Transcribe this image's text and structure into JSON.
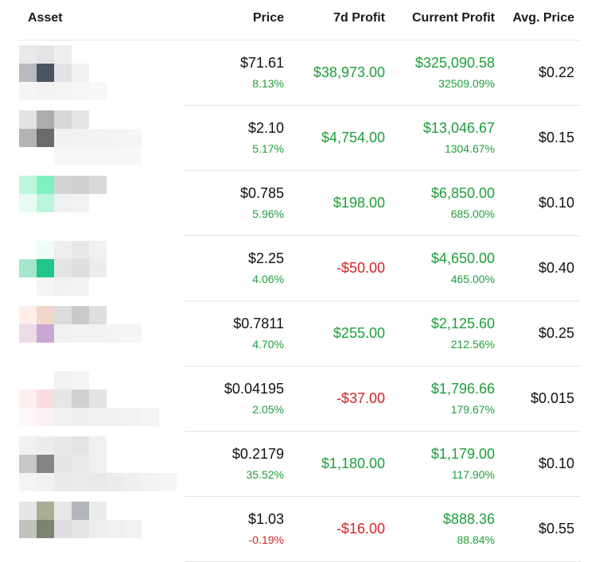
{
  "header": {
    "asset": "Asset",
    "price": "Price",
    "profit_7d": "7d Profit",
    "current_profit": "Current Profit",
    "avg_price": "Avg. Price"
  },
  "colors": {
    "positive": "#1e9e3a",
    "negative": "#d32424"
  },
  "rows": [
    {
      "price": "$71.61",
      "price_change": "8.13%",
      "price_change_sign": "pos",
      "profit_7d": "$38,973.00",
      "profit_7d_sign": "pos",
      "current_profit": "$325,090.58",
      "current_profit_pct": "32509.09%",
      "avg_price": "$0.22",
      "asset_pixels": [
        [
          "#e9e9ec",
          "#e4e4e7",
          "#eeeeee",
          ""
        ],
        [
          "#b9b9c2",
          "#4a5563",
          "#e2e2e4",
          "#f0f0f2"
        ],
        [
          "#f5f5f5",
          "#f2f2f2",
          "#f4f4f4",
          "#f6f6f6",
          "#f7f7f7"
        ]
      ]
    },
    {
      "price": "$2.10",
      "price_change": "5.17%",
      "price_change_sign": "pos",
      "profit_7d": "$4,754.00",
      "profit_7d_sign": "pos",
      "current_profit": "$13,046.67",
      "current_profit_pct": "1304.67%",
      "avg_price": "$0.15",
      "asset_pixels": [
        [
          "#e3e3e3",
          "#acacac",
          "#d8d8d8",
          "#e6e6e6"
        ],
        [
          "#b3b3b3",
          "#6b6b6b",
          "#f1f1f1",
          "#f2f2f2",
          "#f3f3f3",
          "#f4f4f4",
          "#f5f5f5"
        ],
        [
          "",
          "",
          "#f6f6f6",
          "#f6f6f6",
          "#f7f7f7",
          "#f7f7f7",
          "#f8f8f8"
        ]
      ]
    },
    {
      "price": "$0.785",
      "price_change": "5.96%",
      "price_change_sign": "pos",
      "profit_7d": "$198.00",
      "profit_7d_sign": "pos",
      "current_profit": "$6,850.00",
      "current_profit_pct": "685.00%",
      "avg_price": "$0.10",
      "asset_pixels": [
        [
          "#bff5dd",
          "#7ff0c0",
          "#d4d4d4",
          "#cfcfcf",
          "#d9d9d9"
        ],
        [
          "#e8fbf2",
          "#bdf5dc",
          "#eef0f2",
          "#f2f2f4",
          ""
        ],
        [
          "",
          "",
          "",
          "",
          ""
        ]
      ]
    },
    {
      "price": "$2.25",
      "price_change": "4.06%",
      "price_change_sign": "pos",
      "profit_7d": "-$50.00",
      "profit_7d_sign": "neg",
      "current_profit": "$4,650.00",
      "current_profit_pct": "465.00%",
      "avg_price": "$0.40",
      "asset_pixels": [
        [
          "",
          "#eefdf6",
          "#eeeeee",
          "#e8e8e8",
          "#f1f1f1"
        ],
        [
          "#a4e6cc",
          "#21c589",
          "#e4e4e4",
          "#dedede",
          "#ececec"
        ],
        [
          "",
          "#f4f4f4",
          "#f1f1f1",
          "#f3f3f3",
          ""
        ]
      ]
    },
    {
      "price": "$0.7811",
      "price_change": "4.70%",
      "price_change_sign": "pos",
      "profit_7d": "$255.00",
      "profit_7d_sign": "pos",
      "current_profit": "$2,125.60",
      "current_profit_pct": "212.56%",
      "avg_price": "$0.25",
      "asset_pixels": [
        [
          "#fdeeea",
          "#f1d6cc",
          "#dcdcdc",
          "#c9c9c9",
          "#dedede"
        ],
        [
          "#ecdcea",
          "#c9a6d3",
          "#f1f1f1",
          "#f2f2f2",
          "#f3f3f3",
          "#f4f4f4",
          "#f5f5f5"
        ],
        [
          "",
          "",
          "",
          "",
          "",
          "",
          ""
        ]
      ]
    },
    {
      "price": "$0.04195",
      "price_change": "2.05%",
      "price_change_sign": "pos",
      "profit_7d": "-$37.00",
      "profit_7d_sign": "neg",
      "current_profit": "$1,796.66",
      "current_profit_pct": "179.67%",
      "avg_price": "$0.015",
      "asset_pixels": [
        [
          "",
          "",
          "#f2f2f2",
          "#f4f4f4",
          ""
        ],
        [
          "#fdeff0",
          "#f8dde0",
          "#e6e6e6",
          "#d0d0d0",
          "#e3e3e3"
        ],
        [
          "#fef6f7",
          "#fdf0f2",
          "#f0f0f0",
          "#eeeeee",
          "#f0f0f0",
          "#f1f1f1",
          "#f2f2f2",
          "#f4f4f4"
        ]
      ]
    },
    {
      "price": "$0.2179",
      "price_change": "35.52%",
      "price_change_sign": "pos",
      "profit_7d": "$1,180.00",
      "profit_7d_sign": "pos",
      "current_profit": "$1,179.00",
      "current_profit_pct": "117.90%",
      "avg_price": "$0.10",
      "asset_pixels": [
        [
          "#f1f1f1",
          "#ececec",
          "#e7e7e7",
          "#e4e4e4",
          "#f0f0f0"
        ],
        [
          "#c8c8c8",
          "#858585",
          "#e6e6e6",
          "#e9e9e9",
          "#f0f0f0"
        ],
        [
          "#f4f4f4",
          "#f1f1f1",
          "#eaeaea",
          "#ebebeb",
          "#e9e9e9",
          "#ececec",
          "#efefef",
          "#f2f2f2",
          "#f5f5f5"
        ]
      ]
    },
    {
      "price": "$1.03",
      "price_change": "-0.19%",
      "price_change_sign": "neg",
      "profit_7d": "-$16.00",
      "profit_7d_sign": "neg",
      "current_profit": "$888.36",
      "current_profit_pct": "88.84%",
      "avg_price": "$0.55",
      "asset_pixels": [
        [
          "#e6e6e6",
          "#a9ac97",
          "#e8e8e8",
          "#b3b7bb",
          "#ececec"
        ],
        [
          "#c2c4bb",
          "#7b846e",
          "#dedede",
          "#e4e4e4",
          "#eeeeee",
          "#f0f0f0",
          "#f2f2f2"
        ],
        [
          "",
          "",
          "",
          "",
          "",
          "",
          ""
        ]
      ]
    }
  ]
}
